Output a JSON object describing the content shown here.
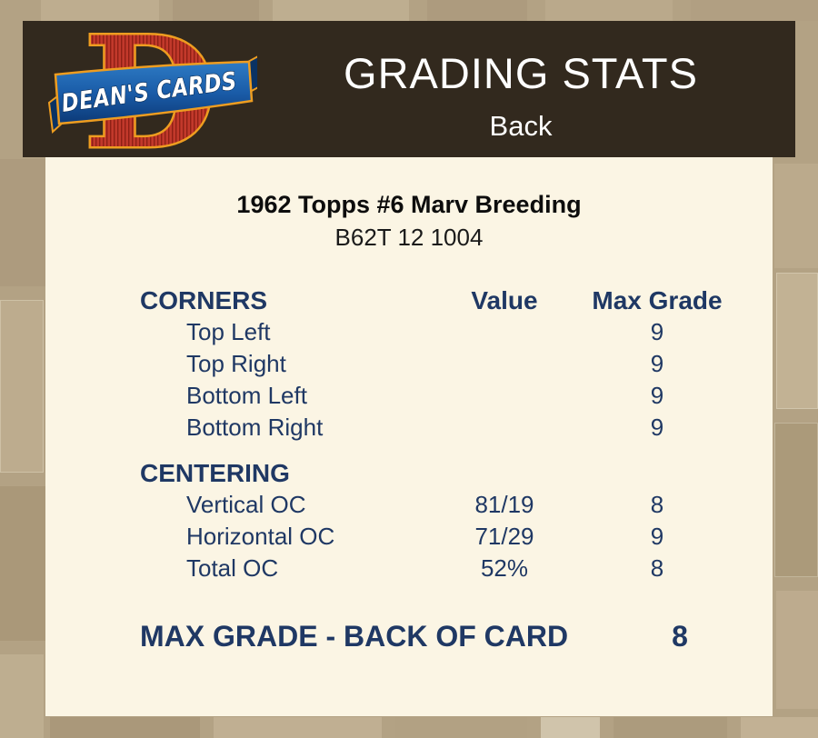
{
  "header": {
    "title": "GRADING STATS",
    "subtitle": "Back",
    "logo": {
      "letter": "D",
      "text": "DEAN'S CARDS"
    }
  },
  "card": {
    "title": "1962 Topps #6 Marv Breeding",
    "id": "B62T 12 1004"
  },
  "table": {
    "columns": {
      "value": "Value",
      "max": "Max Grade"
    },
    "sections": [
      {
        "label": "CORNERS",
        "show_column_headers": true,
        "rows": [
          {
            "label": "Top Left",
            "value": "",
            "max": "9"
          },
          {
            "label": "Top Right",
            "value": "",
            "max": "9"
          },
          {
            "label": "Bottom Left",
            "value": "",
            "max": "9"
          },
          {
            "label": "Bottom Right",
            "value": "",
            "max": "9"
          }
        ]
      },
      {
        "label": "CENTERING",
        "show_column_headers": false,
        "rows": [
          {
            "label": "Vertical OC",
            "value": "81/19",
            "max": "8"
          },
          {
            "label": "Horizontal OC",
            "value": "71/29",
            "max": "9"
          },
          {
            "label": "Total OC",
            "value": "52%",
            "max": "8"
          }
        ]
      }
    ]
  },
  "summary": {
    "label": "MAX GRADE - BACK OF CARD",
    "value": "8"
  },
  "colors": {
    "background_tan": "#B3A284",
    "header_brown": "#32291E",
    "panel_cream": "#FBF5E4",
    "text_navy": "#1F3864",
    "logo_red": "#C2392B",
    "logo_gold": "#EE9D20",
    "logo_blue": "#1A5CA8",
    "title_white": "#FFFFFF"
  }
}
